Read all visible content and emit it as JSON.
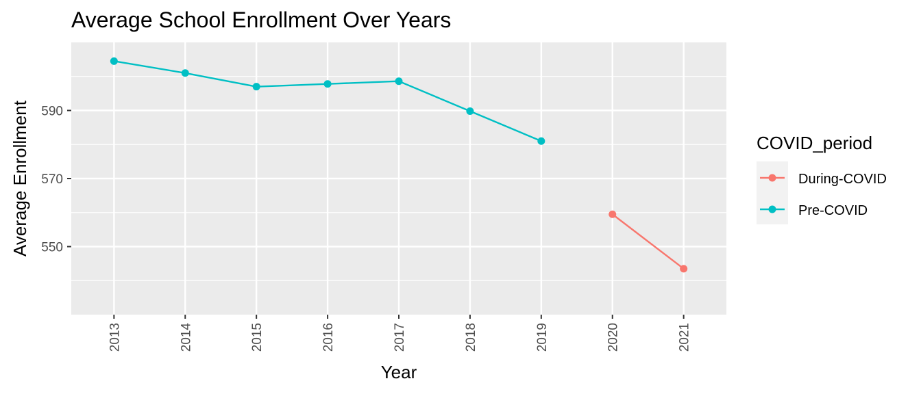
{
  "chart_data": {
    "type": "line",
    "title": "Average School Enrollment Over Years",
    "xlabel": "Year",
    "ylabel": "Average Enrollment",
    "x": [
      2013,
      2014,
      2015,
      2016,
      2017,
      2018,
      2019,
      2020,
      2021
    ],
    "x_tick_labels": [
      "2013",
      "2014",
      "2015",
      "2016",
      "2017",
      "2018",
      "2019",
      "2020",
      "2021"
    ],
    "y_ticks": [
      550,
      570,
      590
    ],
    "y_tick_labels": [
      "550",
      "570",
      "590"
    ],
    "ylim": [
      530,
      610
    ],
    "grid": true,
    "legend": {
      "title": "COVID_period",
      "placement": "right",
      "entries": [
        "During-COVID",
        "Pre-COVID"
      ]
    },
    "series": [
      {
        "name": "During-COVID",
        "color": "#F8766D",
        "points": [
          {
            "x": 2020,
            "y": 559.5
          },
          {
            "x": 2021,
            "y": 543.5
          }
        ]
      },
      {
        "name": "Pre-COVID",
        "color": "#00BFC4",
        "points": [
          {
            "x": 2013,
            "y": 604.5
          },
          {
            "x": 2014,
            "y": 601
          },
          {
            "x": 2015,
            "y": 597
          },
          {
            "x": 2016,
            "y": 597.8
          },
          {
            "x": 2017,
            "y": 598.6
          },
          {
            "x": 2018,
            "y": 589.8
          },
          {
            "x": 2019,
            "y": 581
          }
        ]
      }
    ]
  }
}
